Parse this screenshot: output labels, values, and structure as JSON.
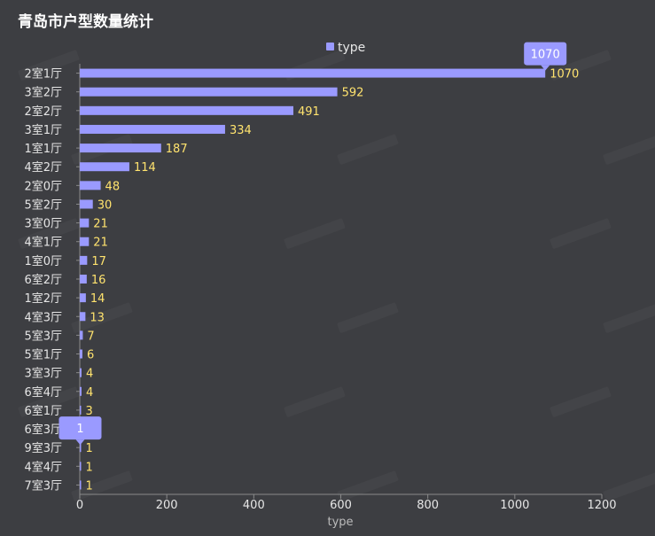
{
  "chart_data": {
    "type": "bar",
    "orientation": "horizontal",
    "title": "青岛市户型数量统计",
    "xlabel": "type",
    "ylabel": "",
    "xlim": [
      0,
      1200
    ],
    "xticks": [
      0,
      200,
      400,
      600,
      800,
      1000,
      1200
    ],
    "grid": false,
    "legend": {
      "position": "top",
      "entries": [
        "type"
      ]
    },
    "categories": [
      "2室1厅",
      "3室2厅",
      "2室2厅",
      "3室1厅",
      "1室1厅",
      "4室2厅",
      "2室0厅",
      "5室2厅",
      "3室0厅",
      "4室1厅",
      "1室0厅",
      "6室2厅",
      "1室2厅",
      "4室3厅",
      "5室3厅",
      "5室1厅",
      "3室3厅",
      "6室4厅",
      "6室1厅",
      "6室3厅",
      "9室3厅",
      "4室4厅",
      "7室3厅"
    ],
    "series": [
      {
        "name": "type",
        "values": [
          1070,
          592,
          491,
          334,
          187,
          114,
          48,
          30,
          21,
          21,
          17,
          16,
          14,
          13,
          7,
          6,
          4,
          4,
          3,
          3,
          1,
          1,
          1
        ]
      }
    ],
    "tooltips": [
      {
        "category": "2室1厅",
        "value": "1070"
      },
      {
        "category": "9室3厅",
        "value": "1"
      }
    ],
    "colors": {
      "bar": "#9a9aff",
      "value_label": "#ffe36e",
      "background": "#3d3e42",
      "tooltip": "#9a9aff"
    }
  }
}
